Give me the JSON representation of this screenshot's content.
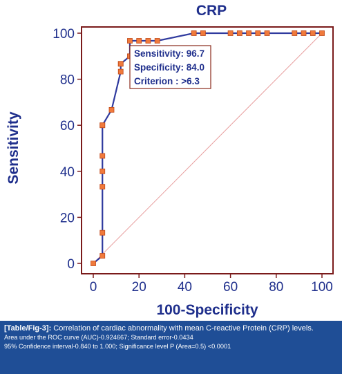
{
  "colors": {
    "axis_text": "#1f2f8c",
    "frame": "#7a1a1a",
    "roc_line": "#2f3a9e",
    "marker": "#f07a3c",
    "marker_edge": "#c04a1a",
    "diagonal": "#e8a0a0",
    "tooltip_border": "#8a2a1a",
    "caption_bg": "#1f4e96"
  },
  "chart_data": {
    "type": "line",
    "title": "CRP",
    "xlabel": "100-Specificity",
    "ylabel": "Sensitivity",
    "xlim": [
      0,
      100
    ],
    "ylim": [
      0,
      100
    ],
    "xticks": [
      "0",
      "20",
      "40",
      "60",
      "80",
      "100"
    ],
    "yticks": [
      "0",
      "20",
      "40",
      "60",
      "80",
      "100"
    ],
    "grid": false,
    "series": [
      {
        "x": [
          0,
          4,
          4,
          4,
          4,
          4,
          4,
          4,
          8,
          12,
          12,
          12,
          16,
          16,
          20,
          24,
          28,
          44,
          48,
          60,
          64,
          68,
          72,
          76,
          88,
          92,
          96,
          100
        ],
        "y": [
          0,
          3.3,
          13.3,
          33.3,
          40,
          46.7,
          60,
          60,
          66.7,
          83.3,
          86.7,
          86.7,
          90,
          96.7,
          96.7,
          96.7,
          96.7,
          100,
          100,
          100,
          100,
          100,
          100,
          100,
          100,
          100,
          100,
          100
        ]
      }
    ],
    "reference_line": {
      "x": [
        0,
        100
      ],
      "y": [
        0,
        100
      ]
    },
    "annotation": {
      "lines": [
        "Sensitivity: 96.7",
        "Specificity: 84.0",
        "Criterion : >6.3"
      ],
      "anchor": {
        "x": 16,
        "y": 96.7
      }
    }
  },
  "caption": {
    "label": "[Table/Fig-3]:",
    "text": " Correlation of cardiac abnormality with mean C-reactive Protein (CRP) levels.",
    "line2": "Area under the ROC curve (AUC)-0.924667; Standard error-0.0434",
    "line3": "95% Confidence interval-0.840 to 1.000; Significance level P (Area=0.5) <0.0001"
  }
}
